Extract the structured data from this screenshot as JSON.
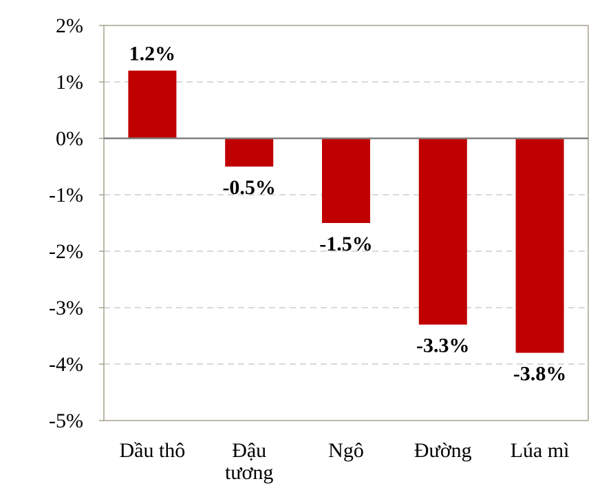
{
  "chart_data": {
    "type": "bar",
    "categories": [
      [
        "Dầu thô"
      ],
      [
        "Đậu",
        "tương"
      ],
      [
        "Ngô"
      ],
      [
        "Đường"
      ],
      [
        "Lúa mì"
      ]
    ],
    "values": [
      1.2,
      -0.5,
      -1.5,
      -3.3,
      -3.8
    ],
    "data_labels": [
      "1.2%",
      "-0.5%",
      "-1.5%",
      "-3.3%",
      "-3.8%"
    ],
    "yticks": [
      2,
      1,
      0,
      -1,
      -2,
      -3,
      -4,
      -5
    ],
    "ytick_labels": [
      "2%",
      "1%",
      "0%",
      "-1%",
      "-2%",
      "-3%",
      "-4%",
      "-5%"
    ],
    "ylim": [
      -5,
      2
    ],
    "grid": true,
    "bar_color": "#C00000",
    "grid_color": "#D9D9D9",
    "axis_color": "#A6A08A",
    "zero_line_color": "#7F7F7F",
    "title": "",
    "xlabel": "",
    "ylabel": ""
  }
}
